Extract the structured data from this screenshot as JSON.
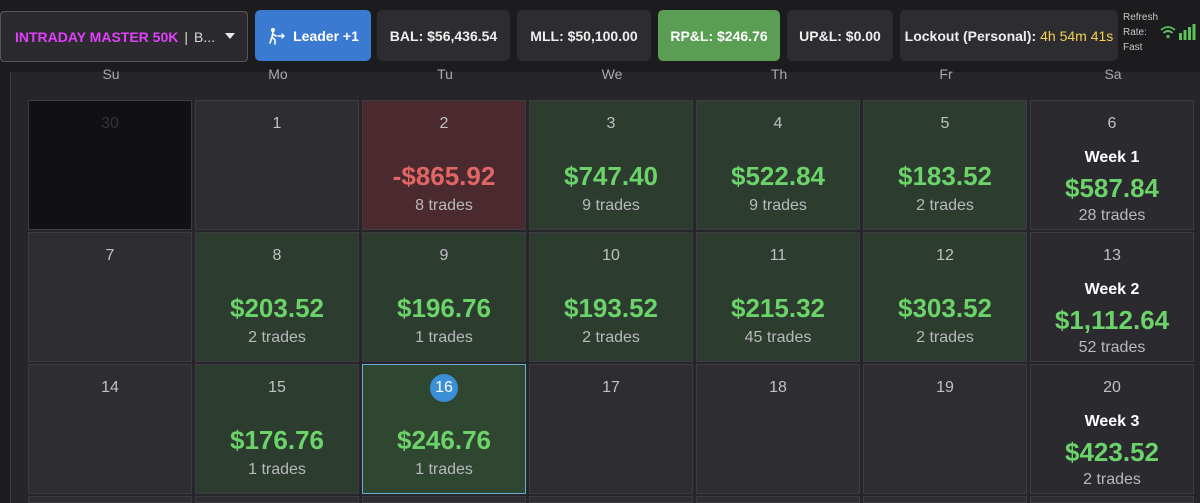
{
  "header": {
    "account_name": "INTRADAY MASTER 50K",
    "account_sep": "|",
    "account_suffix": "B...",
    "leader_label": "Leader +1",
    "bal": "BAL: $56,436.54",
    "mll": "MLL: $50,100.00",
    "rpl": "RP&L: $246.76",
    "upl": "UP&L: $0.00",
    "lockout_label": "Lockout (Personal):",
    "lockout_time": "4h 54m 41s",
    "refresh_lines": [
      "Refresh",
      "Rate:",
      "Fast"
    ],
    "icons": [
      "runner-arrow-icon",
      "wifi-icon",
      "signal-bars-icon",
      "chevron-down-icon"
    ],
    "colors": {
      "accent_blue": "#3a7ad1",
      "profit_green": "#6cd36a",
      "loss_red": "#e06565",
      "account_magenta": "#e040fb",
      "lockout_yellow": "#f2d24e"
    }
  },
  "calendar": {
    "weekdays": [
      "Su",
      "Mo",
      "Tu",
      "We",
      "Th",
      "Fr",
      "Sa"
    ],
    "weeks": [
      {
        "days": [
          {
            "num": "30",
            "type": "empty-day"
          },
          {
            "num": "1",
            "type": "none"
          },
          {
            "num": "2",
            "type": "loss",
            "amount": "-$865.92",
            "trades": "8 trades"
          },
          {
            "num": "3",
            "type": "win",
            "amount": "$747.40",
            "trades": "9 trades"
          },
          {
            "num": "4",
            "type": "win",
            "amount": "$522.84",
            "trades": "9 trades"
          },
          {
            "num": "5",
            "type": "win",
            "amount": "$183.52",
            "trades": "2 trades"
          },
          {
            "num": "6",
            "type": "week",
            "label": "Week 1",
            "amount": "$587.84",
            "trades": "28 trades"
          }
        ]
      },
      {
        "days": [
          {
            "num": "7",
            "type": "none"
          },
          {
            "num": "8",
            "type": "win",
            "amount": "$203.52",
            "trades": "2 trades"
          },
          {
            "num": "9",
            "type": "win",
            "amount": "$196.76",
            "trades": "1 trades"
          },
          {
            "num": "10",
            "type": "win",
            "amount": "$193.52",
            "trades": "2 trades"
          },
          {
            "num": "11",
            "type": "win",
            "amount": "$215.32",
            "trades": "45 trades"
          },
          {
            "num": "12",
            "type": "win",
            "amount": "$303.52",
            "trades": "2 trades"
          },
          {
            "num": "13",
            "type": "week",
            "label": "Week 2",
            "amount": "$1,112.64",
            "trades": "52 trades"
          }
        ]
      },
      {
        "days": [
          {
            "num": "14",
            "type": "none"
          },
          {
            "num": "15",
            "type": "win",
            "amount": "$176.76",
            "trades": "1 trades"
          },
          {
            "num": "16",
            "type": "today",
            "amount": "$246.76",
            "trades": "1 trades"
          },
          {
            "num": "17",
            "type": "none"
          },
          {
            "num": "18",
            "type": "none"
          },
          {
            "num": "19",
            "type": "none"
          },
          {
            "num": "20",
            "type": "week",
            "label": "Week 3",
            "amount": "$423.52",
            "trades": "2 trades"
          }
        ]
      }
    ]
  }
}
